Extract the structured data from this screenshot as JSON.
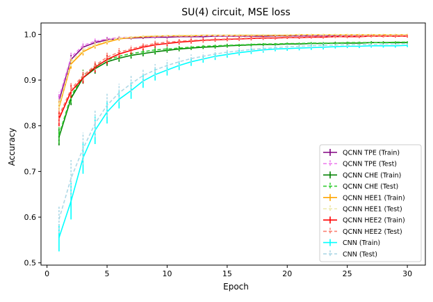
{
  "chart_data": {
    "type": "line",
    "title": "SU(4) circuit, MSE loss",
    "xlabel": "Epoch",
    "ylabel": "Accuracy",
    "xlim": [
      -0.5,
      31.5
    ],
    "ylim": [
      0.495,
      1.025
    ],
    "xticks": [
      0,
      5,
      10,
      15,
      20,
      25,
      30
    ],
    "xtick_labels": [
      "0",
      "5",
      "10",
      "15",
      "20",
      "25",
      "30"
    ],
    "yticks": [
      0.5,
      0.6,
      0.7,
      0.8,
      0.9,
      1.0
    ],
    "ytick_labels": [
      "0.5",
      "0.6",
      "0.7",
      "0.8",
      "0.9",
      "1.0"
    ],
    "grid": false,
    "legend_position": "lower-right",
    "x": [
      1,
      2,
      3,
      4,
      5,
      6,
      7,
      8,
      9,
      10,
      11,
      12,
      13,
      14,
      15,
      16,
      17,
      18,
      19,
      20,
      21,
      22,
      23,
      24,
      25,
      26,
      27,
      28,
      29,
      30
    ],
    "series": [
      {
        "name": "QCNN TPE (Train)",
        "color": "#800080",
        "style": "solid",
        "values": [
          0.855,
          0.945,
          0.972,
          0.982,
          0.988,
          0.991,
          0.992,
          0.993,
          0.994,
          0.994,
          0.995,
          0.995,
          0.995,
          0.996,
          0.996,
          0.996,
          0.996,
          0.996,
          0.997,
          0.997,
          0.997,
          0.997,
          0.997,
          0.997,
          0.997,
          0.997,
          0.997,
          0.997,
          0.997,
          0.997
        ],
        "errors": [
          0.012,
          0.01,
          0.008,
          0.006,
          0.005,
          0.004,
          0.003,
          0.003,
          0.003,
          0.003,
          0.002,
          0.002,
          0.002,
          0.002,
          0.002,
          0.002,
          0.002,
          0.002,
          0.002,
          0.002,
          0.002,
          0.002,
          0.002,
          0.002,
          0.002,
          0.002,
          0.002,
          0.002,
          0.002,
          0.002
        ]
      },
      {
        "name": "QCNN TPE (Test)",
        "color": "#ee82ee",
        "style": "dashed",
        "values": [
          0.862,
          0.95,
          0.976,
          0.985,
          0.99,
          0.993,
          0.994,
          0.995,
          0.995,
          0.996,
          0.996,
          0.996,
          0.997,
          0.997,
          0.997,
          0.997,
          0.997,
          0.998,
          0.998,
          0.998,
          0.998,
          0.998,
          0.998,
          0.998,
          0.998,
          0.998,
          0.998,
          0.998,
          0.998,
          0.998
        ],
        "errors": [
          0.012,
          0.01,
          0.008,
          0.006,
          0.005,
          0.004,
          0.003,
          0.003,
          0.003,
          0.003,
          0.002,
          0.002,
          0.002,
          0.002,
          0.002,
          0.002,
          0.002,
          0.002,
          0.002,
          0.002,
          0.002,
          0.002,
          0.002,
          0.002,
          0.002,
          0.002,
          0.002,
          0.002,
          0.002,
          0.002
        ]
      },
      {
        "name": "QCNN CHE (Train)",
        "color": "#008000",
        "style": "solid",
        "values": [
          0.775,
          0.86,
          0.905,
          0.925,
          0.94,
          0.948,
          0.954,
          0.958,
          0.962,
          0.965,
          0.968,
          0.97,
          0.972,
          0.973,
          0.975,
          0.976,
          0.977,
          0.978,
          0.978,
          0.979,
          0.979,
          0.98,
          0.98,
          0.981,
          0.981,
          0.981,
          0.982,
          0.982,
          0.982,
          0.982
        ],
        "errors": [
          0.018,
          0.015,
          0.013,
          0.011,
          0.009,
          0.008,
          0.007,
          0.006,
          0.006,
          0.005,
          0.005,
          0.004,
          0.004,
          0.004,
          0.004,
          0.003,
          0.003,
          0.003,
          0.003,
          0.003,
          0.003,
          0.003,
          0.003,
          0.003,
          0.003,
          0.003,
          0.003,
          0.003,
          0.003,
          0.003
        ]
      },
      {
        "name": "QCNN CHE (Test)",
        "color": "#32cd32",
        "style": "dashed",
        "values": [
          0.78,
          0.865,
          0.91,
          0.93,
          0.944,
          0.952,
          0.958,
          0.962,
          0.966,
          0.968,
          0.97,
          0.972,
          0.974,
          0.975,
          0.976,
          0.977,
          0.978,
          0.979,
          0.979,
          0.98,
          0.98,
          0.981,
          0.981,
          0.981,
          0.982,
          0.982,
          0.982,
          0.982,
          0.983,
          0.983
        ],
        "errors": [
          0.018,
          0.015,
          0.013,
          0.011,
          0.009,
          0.008,
          0.007,
          0.006,
          0.006,
          0.005,
          0.005,
          0.004,
          0.004,
          0.004,
          0.004,
          0.003,
          0.003,
          0.003,
          0.003,
          0.003,
          0.003,
          0.003,
          0.003,
          0.003,
          0.003,
          0.003,
          0.003,
          0.003,
          0.003,
          0.003
        ]
      },
      {
        "name": "QCNN HEE1 (Train)",
        "color": "#ffa500",
        "style": "solid",
        "values": [
          0.84,
          0.935,
          0.962,
          0.975,
          0.983,
          0.99,
          0.993,
          0.995,
          0.996,
          0.997,
          0.997,
          0.997,
          0.998,
          0.998,
          0.998,
          0.998,
          0.998,
          0.998,
          0.998,
          0.998,
          0.999,
          0.999,
          0.999,
          0.999,
          0.999,
          0.999,
          0.999,
          0.999,
          0.999,
          0.999
        ],
        "errors": [
          0.014,
          0.01,
          0.008,
          0.006,
          0.005,
          0.004,
          0.003,
          0.003,
          0.002,
          0.002,
          0.002,
          0.002,
          0.002,
          0.002,
          0.002,
          0.002,
          0.002,
          0.002,
          0.002,
          0.002,
          0.002,
          0.002,
          0.002,
          0.002,
          0.002,
          0.002,
          0.002,
          0.002,
          0.002,
          0.002
        ]
      },
      {
        "name": "QCNN HEE1 (Test)",
        "color": "#eee8aa",
        "style": "dashed",
        "values": [
          0.845,
          0.94,
          0.966,
          0.978,
          0.986,
          0.992,
          0.994,
          0.996,
          0.997,
          0.997,
          0.998,
          0.998,
          0.998,
          0.998,
          0.998,
          0.999,
          0.999,
          0.999,
          0.999,
          0.999,
          0.999,
          0.999,
          0.999,
          0.999,
          0.999,
          0.999,
          0.999,
          0.999,
          0.999,
          0.999
        ],
        "errors": [
          0.014,
          0.01,
          0.008,
          0.006,
          0.005,
          0.004,
          0.003,
          0.003,
          0.002,
          0.002,
          0.002,
          0.002,
          0.002,
          0.002,
          0.002,
          0.002,
          0.002,
          0.002,
          0.002,
          0.002,
          0.002,
          0.002,
          0.002,
          0.002,
          0.002,
          0.002,
          0.002,
          0.002,
          0.002,
          0.002
        ]
      },
      {
        "name": "QCNN HEE2 (Train)",
        "color": "#ff0000",
        "style": "solid",
        "values": [
          0.815,
          0.875,
          0.905,
          0.928,
          0.945,
          0.957,
          0.965,
          0.972,
          0.977,
          0.98,
          0.983,
          0.985,
          0.987,
          0.988,
          0.989,
          0.99,
          0.991,
          0.992,
          0.992,
          0.993,
          0.993,
          0.994,
          0.994,
          0.995,
          0.995,
          0.995,
          0.996,
          0.996,
          0.996,
          0.996
        ],
        "errors": [
          0.016,
          0.014,
          0.012,
          0.011,
          0.01,
          0.009,
          0.008,
          0.007,
          0.006,
          0.006,
          0.005,
          0.005,
          0.005,
          0.004,
          0.004,
          0.004,
          0.004,
          0.004,
          0.003,
          0.003,
          0.003,
          0.003,
          0.003,
          0.003,
          0.003,
          0.003,
          0.003,
          0.003,
          0.003,
          0.003
        ]
      },
      {
        "name": "QCNN HEE2 (Test)",
        "color": "#fa8072",
        "style": "dashed",
        "values": [
          0.822,
          0.88,
          0.91,
          0.932,
          0.95,
          0.961,
          0.968,
          0.975,
          0.98,
          0.983,
          0.985,
          0.987,
          0.988,
          0.989,
          0.99,
          0.991,
          0.992,
          0.993,
          0.993,
          0.994,
          0.994,
          0.995,
          0.995,
          0.995,
          0.996,
          0.996,
          0.996,
          0.996,
          0.997,
          0.997
        ],
        "errors": [
          0.016,
          0.014,
          0.012,
          0.011,
          0.01,
          0.009,
          0.008,
          0.007,
          0.006,
          0.006,
          0.005,
          0.005,
          0.005,
          0.004,
          0.004,
          0.004,
          0.004,
          0.004,
          0.003,
          0.003,
          0.003,
          0.003,
          0.003,
          0.003,
          0.003,
          0.003,
          0.003,
          0.003,
          0.003,
          0.003
        ]
      },
      {
        "name": "CNN (Train)",
        "color": "#00ffff",
        "style": "solid",
        "values": [
          0.555,
          0.635,
          0.73,
          0.79,
          0.83,
          0.858,
          0.877,
          0.898,
          0.912,
          0.922,
          0.932,
          0.94,
          0.946,
          0.952,
          0.956,
          0.96,
          0.963,
          0.966,
          0.968,
          0.969,
          0.97,
          0.971,
          0.972,
          0.973,
          0.974,
          0.974,
          0.975,
          0.975,
          0.975,
          0.976
        ],
        "errors": [
          0.03,
          0.04,
          0.035,
          0.03,
          0.025,
          0.02,
          0.018,
          0.015,
          0.013,
          0.012,
          0.01,
          0.009,
          0.008,
          0.008,
          0.007,
          0.006,
          0.006,
          0.006,
          0.005,
          0.005,
          0.005,
          0.005,
          0.005,
          0.004,
          0.004,
          0.004,
          0.004,
          0.004,
          0.004,
          0.004
        ]
      },
      {
        "name": "CNN (Test)",
        "color": "#add8e6",
        "style": "dashed",
        "values": [
          0.595,
          0.685,
          0.75,
          0.805,
          0.845,
          0.872,
          0.892,
          0.91,
          0.922,
          0.932,
          0.94,
          0.947,
          0.952,
          0.957,
          0.961,
          0.964,
          0.967,
          0.969,
          0.971,
          0.973,
          0.974,
          0.975,
          0.976,
          0.977,
          0.977,
          0.978,
          0.978,
          0.979,
          0.979,
          0.98
        ],
        "errors": [
          0.03,
          0.04,
          0.035,
          0.03,
          0.025,
          0.02,
          0.018,
          0.015,
          0.013,
          0.012,
          0.01,
          0.009,
          0.008,
          0.008,
          0.007,
          0.006,
          0.006,
          0.006,
          0.005,
          0.005,
          0.005,
          0.005,
          0.005,
          0.004,
          0.004,
          0.004,
          0.004,
          0.004,
          0.004,
          0.004
        ]
      }
    ]
  }
}
